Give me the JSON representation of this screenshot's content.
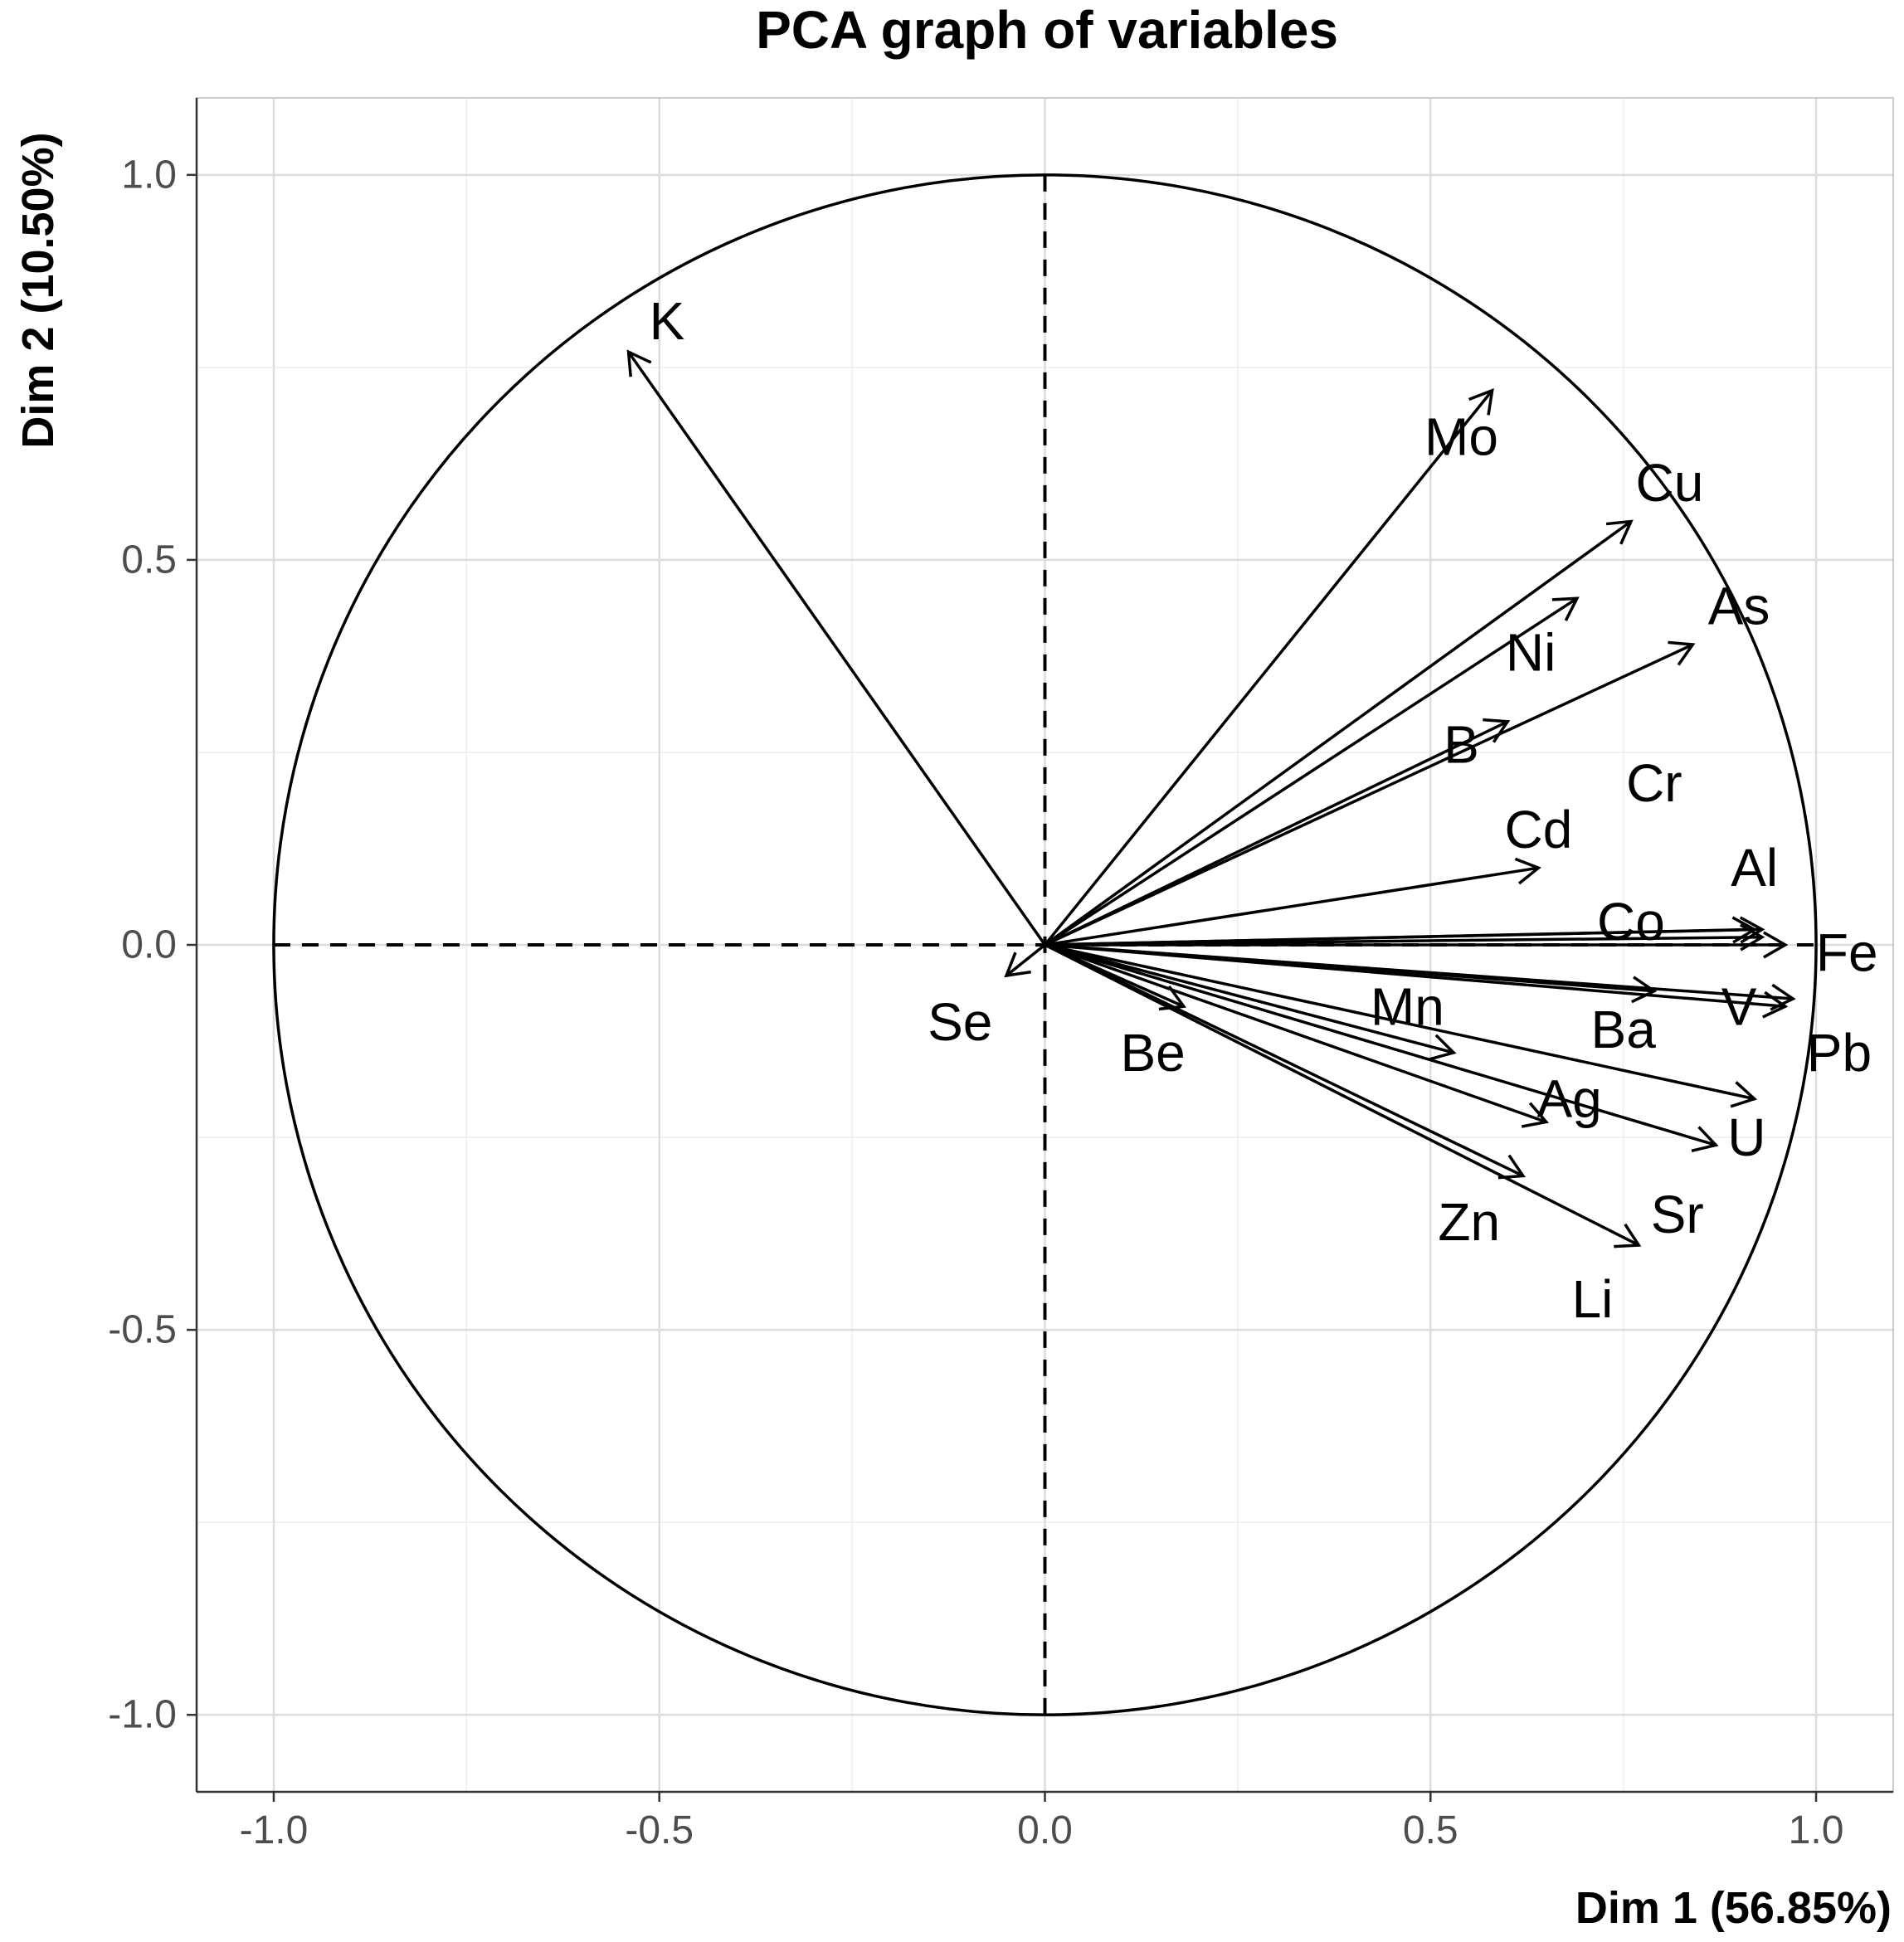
{
  "chart_data": {
    "type": "scatter",
    "subtype": "pca-correlation-circle",
    "title": "PCA graph of variables",
    "xlabel": "Dim 1 (56.85%)",
    "ylabel": "Dim 2 (10.50%)",
    "xlim": [
      -1.1,
      1.1
    ],
    "ylim": [
      -1.1,
      1.1
    ],
    "xticks": [
      -1.0,
      -0.5,
      0.0,
      0.5,
      1.0
    ],
    "yticks": [
      -1.0,
      -0.5,
      0.0,
      0.5,
      1.0
    ],
    "xtick_labels": [
      "-1.0",
      "-0.5",
      "0.0",
      "0.5",
      "1.0"
    ],
    "ytick_labels": [
      "1.0",
      "0.5",
      "0.0",
      "-0.5",
      "-1.0"
    ],
    "grid": true,
    "unit_circle": true,
    "variables": [
      {
        "name": "K",
        "x": -0.54,
        "y": 0.77,
        "lx": -0.49,
        "ly": 0.81
      },
      {
        "name": "Mo",
        "x": 0.58,
        "y": 0.72,
        "lx": 0.54,
        "ly": 0.66
      },
      {
        "name": "Cu",
        "x": 0.76,
        "y": 0.55,
        "lx": 0.81,
        "ly": 0.6
      },
      {
        "name": "Ni",
        "x": 0.69,
        "y": 0.45,
        "lx": 0.63,
        "ly": 0.38
      },
      {
        "name": "As",
        "x": 0.84,
        "y": 0.39,
        "lx": 0.9,
        "ly": 0.44
      },
      {
        "name": "B",
        "x": 0.6,
        "y": 0.29,
        "lx": 0.54,
        "ly": 0.26
      },
      {
        "name": "Cr",
        "x": 0.92,
        "y": 0.02,
        "lx": 0.79,
        "ly": 0.21
      },
      {
        "name": "Cd",
        "x": 0.64,
        "y": 0.1,
        "lx": 0.64,
        "ly": 0.15
      },
      {
        "name": "Al",
        "x": 0.93,
        "y": 0.01,
        "lx": 0.92,
        "ly": 0.1
      },
      {
        "name": "Co",
        "x": 0.93,
        "y": 0.02,
        "lx": 0.76,
        "ly": 0.03
      },
      {
        "name": "Fe",
        "x": 0.96,
        "y": 0.0,
        "lx": 1.04,
        "ly": -0.01
      },
      {
        "name": "V",
        "x": 0.97,
        "y": -0.07,
        "lx": 0.9,
        "ly": -0.08
      },
      {
        "name": "Pb",
        "x": 0.96,
        "y": -0.08,
        "lx": 1.03,
        "ly": -0.14
      },
      {
        "name": "Ba",
        "x": 0.79,
        "y": -0.06,
        "lx": 0.75,
        "ly": -0.11
      },
      {
        "name": "Mn",
        "x": 0.53,
        "y": -0.14,
        "lx": 0.47,
        "ly": -0.08
      },
      {
        "name": "U",
        "x": 0.92,
        "y": -0.2,
        "lx": 0.91,
        "ly": -0.25
      },
      {
        "name": "Ag",
        "x": 0.87,
        "y": -0.26,
        "lx": 0.68,
        "ly": -0.2
      },
      {
        "name": "Sr",
        "x": 0.65,
        "y": -0.23,
        "lx": 0.82,
        "ly": -0.35
      },
      {
        "name": "Zn",
        "x": 0.62,
        "y": -0.3,
        "lx": 0.55,
        "ly": -0.36
      },
      {
        "name": "Li",
        "x": 0.77,
        "y": -0.39,
        "lx": 0.71,
        "ly": -0.46
      },
      {
        "name": "Be",
        "x": 0.18,
        "y": -0.08,
        "lx": 0.14,
        "ly": -0.14
      },
      {
        "name": "Se",
        "x": -0.05,
        "y": -0.04,
        "lx": -0.11,
        "ly": -0.1
      }
    ]
  }
}
